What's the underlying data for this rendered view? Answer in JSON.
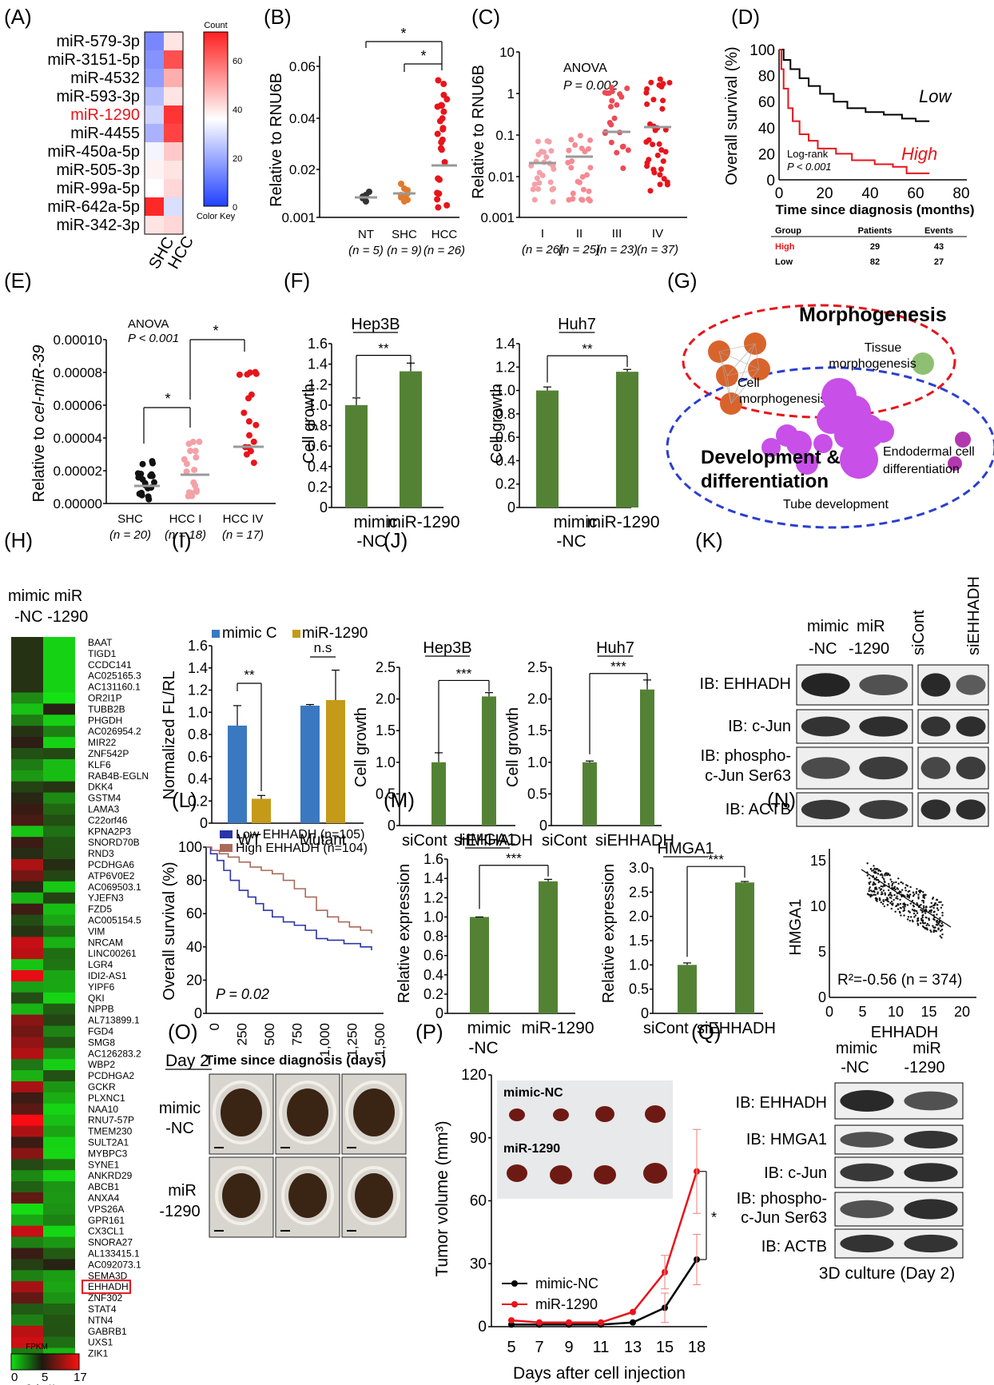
{
  "colors": {
    "red": "#e8141b",
    "green": "#548235",
    "blue": "#3a78c1",
    "gold": "#c59a18",
    "orange": "#e07a2e",
    "grey": "#999999",
    "pink": "#f4a1a8",
    "dark": "#111111"
  },
  "panel_labels": [
    "(A)",
    "(B)",
    "(C)",
    "(D)",
    "(E)",
    "(F)",
    "(G)",
    "(H)",
    "(I)",
    "(J)",
    "(K)",
    "(L)",
    "(M)",
    "(N)",
    "(O)",
    "(P)",
    "(Q)"
  ],
  "A": {
    "mirnas": [
      "miR-579-3p",
      "miR-3151-5p",
      "miR-4532",
      "miR-593-3p",
      "miR-1290",
      "miR-4455",
      "miR-450a-5p",
      "miR-505-3p",
      "miR-99a-5p",
      "miR-642a-5p",
      "miR-342-3p"
    ],
    "highlight": "miR-1290",
    "columns": [
      "SHC",
      "HCC"
    ],
    "counts": [
      [
        10,
        36
      ],
      [
        12,
        58
      ],
      [
        14,
        44
      ],
      [
        20,
        36
      ],
      [
        24,
        62
      ],
      [
        18,
        60
      ],
      [
        30,
        40
      ],
      [
        34,
        36
      ],
      [
        32,
        38
      ],
      [
        64,
        26
      ],
      [
        36,
        38
      ]
    ],
    "key_title": "Count",
    "key_ticks": [
      "60",
      "40",
      "20",
      "0"
    ],
    "key_label": "Color Key"
  },
  "B": {
    "ylabel": "Relative to RNU6B",
    "yticks": [
      "0.06",
      "0.04",
      "0.02",
      "0.001"
    ],
    "groups": [
      {
        "name": "NT",
        "n": "(n = 5)"
      },
      {
        "name": "SHC",
        "n": "(n = 9)"
      },
      {
        "name": "HCC",
        "n": "(n = 26)"
      }
    ],
    "star": "*"
  },
  "C": {
    "ylabel": "Relative to RNU6B",
    "yticks": [
      "10",
      "1",
      "0.1",
      "0.01",
      "0.001"
    ],
    "anova": "ANOVA",
    "p": "P = 0.002",
    "groups": [
      {
        "name": "I",
        "n": "(n = 26)"
      },
      {
        "name": "II",
        "n": "(n = 25)"
      },
      {
        "name": "III",
        "n": "(n = 23)"
      },
      {
        "name": "IV",
        "n": "(n = 37)"
      }
    ]
  },
  "D": {
    "ylabel": "Overall survival (%)",
    "xlabel": "Time since diagnosis (months)",
    "yticks": [
      "100",
      "80",
      "60",
      "40",
      "20",
      "0"
    ],
    "xticks": [
      "0",
      "20",
      "40",
      "60",
      "80"
    ],
    "low": "Low",
    "high": "High",
    "logrank": "Log-rank",
    "p": "P < 0.001",
    "table_header": [
      "Group",
      "Patients",
      "Events"
    ],
    "table_rows": [
      [
        "High",
        "29",
        "43"
      ],
      [
        "Low",
        "82",
        "27"
      ]
    ]
  },
  "E": {
    "ylabel_pre": "Relative to ",
    "ylabel_it": "cel-miR-39",
    "yticks": [
      "0.00010",
      "0.00008",
      "0.00006",
      "0.00004",
      "0.00002",
      "0.00000"
    ],
    "anova": "ANOVA",
    "p": "P < 0.001",
    "groups": [
      {
        "name": "SHC",
        "n": "(n = 20)"
      },
      {
        "name": "HCC I",
        "n": "(n = 18)"
      },
      {
        "name": "HCC IV",
        "n": "(n = 17)"
      }
    ]
  },
  "F": {
    "ylabel": "Cell growth",
    "left": {
      "title": "Hep3B",
      "yticks": [
        "1.6",
        "1.4",
        "1.2",
        "1.0",
        "0.8",
        "0.6",
        "0.4",
        "0.2",
        "0"
      ],
      "values": [
        1.0,
        1.33
      ],
      "sig": "**"
    },
    "right": {
      "title": "Huh7",
      "yticks": [
        "1.4",
        "1.2",
        "1.0",
        "0.8",
        "0.6",
        "0.4",
        "0.2",
        "0"
      ],
      "values": [
        1.0,
        1.16
      ],
      "sig": "**"
    },
    "xlabels": [
      "mimic",
      "-NC",
      "miR-1290"
    ]
  },
  "G": {
    "morphogenesis": "Morphogenesis",
    "tissue": "Tissue",
    "tissue2": "morphogenesis",
    "cell": "Cell",
    "cell2": "morphogenesis",
    "development": "Development &",
    "development2": "differentiation",
    "endodermal": "Endodermal cell",
    "endodermal2": "differentiation",
    "tube": "Tube development"
  },
  "H": {
    "header1": "mimic miR",
    "header2": "-NC -1290",
    "genes": [
      "BAAT",
      "TIGD1",
      "CCDC141",
      "AC025165.3",
      "AC131160.1",
      "OR2I1P",
      "TUBB2B",
      "PHGDH",
      "AC026954.2",
      "MIR22",
      "ZNF542P",
      "KLF6",
      "RAB4B-EGLN",
      "DKK4",
      "GSTM4",
      "LAMA3",
      "C22orf46",
      "KPNA2P3",
      "SNORD70B",
      "RND3",
      "PCDHGA6",
      "ATP6V0E2",
      "AC069503.1",
      "YJEFN3",
      "FZD5",
      "AC005154.5",
      "VIM",
      "NRCAM",
      "LINC00261",
      "LGR4",
      "IDI2-AS1",
      "YIPF6",
      "QKI",
      "NPPB",
      "AL713899.1",
      "FGD4",
      "SMG8",
      "AC126283.2",
      "WBP2",
      "PCDHGA2",
      "GCKR",
      "PLXNC1",
      "NAA10",
      "RNU7-57P",
      "TMEM230",
      "SULT2A1",
      "MYBPC3",
      "SYNE1",
      "ANKRD29",
      "ABCB1",
      "ANXA4",
      "VPS26A",
      "GPR161",
      "CX3CL1",
      "SNORA27",
      "AL133415.1",
      "AC092073.1",
      "SEMA3D",
      "EHHADH",
      "ZNF302",
      "STAT4",
      "NTN4",
      "GABRB1",
      "UXS1",
      "ZIK1"
    ],
    "highlight": "EHHADH",
    "key_title": "FPKM",
    "key_ticks": [
      "0",
      "5",
      "17"
    ],
    "key_label": "Color Key"
  },
  "I": {
    "legend": [
      "mimic C",
      "miR-1290"
    ],
    "ylabel": "Normalized FL/RL",
    "yticks": [
      "1.6",
      "1.4",
      "1.2",
      "1.0",
      "0.8",
      "0.6",
      "0.4",
      "0.2",
      "0"
    ],
    "categories": [
      "WT",
      "Mutant"
    ],
    "series": [
      {
        "name": "mimic C",
        "values": [
          0.88,
          1.06
        ]
      },
      {
        "name": "miR-1290",
        "values": [
          0.22,
          1.11
        ]
      }
    ],
    "sig": [
      "**",
      "n.s"
    ]
  },
  "J": {
    "ylabel": "Overall survival (%)",
    "xlabel": "Time since diagnosis (days)",
    "yticks": [
      "100",
      "80",
      "60",
      "40",
      "20",
      "0"
    ],
    "xticks": [
      "0",
      "250",
      "500",
      "750",
      "1,000",
      "1,250",
      "1,500"
    ],
    "legend_low": "Low EHHADH (n=105)",
    "legend_high": "High EHHADH (n=104)",
    "p": "P = 0.02"
  },
  "K": {
    "ylabel": "Cell growth",
    "left": {
      "title": "Hep3B",
      "yticks": [
        "2.5",
        "2.0",
        "1.5",
        "1.0",
        "0.5",
        "0"
      ],
      "values": [
        1.0,
        2.04
      ],
      "sig": "***"
    },
    "right": {
      "title": "Huh7",
      "yticks": [
        "2.5",
        "2.0",
        "1.5",
        "1.0",
        "0.5",
        "0"
      ],
      "values": [
        1.0,
        2.15
      ],
      "sig": "***"
    },
    "xlabels": [
      "siCont",
      "siEHHADH"
    ]
  },
  "L": {
    "cols": [
      "mimic",
      "-NC",
      "miR",
      "-1290",
      "siCont",
      "siEHHADH"
    ],
    "rows": [
      "IB: EHHADH",
      "IB: c-Jun",
      "IB: phospho-",
      "c-Jun Ser63",
      "IB: ACTB"
    ]
  },
  "M": {
    "ylabel": "Relative expression",
    "left": {
      "title": "HMGA1",
      "yticks": [
        "1.6",
        "1.4",
        "1.2",
        "1.0",
        "0.8",
        "0.6",
        "0.4",
        "0.2",
        "0"
      ],
      "values": [
        1.0,
        1.37
      ],
      "sig": "***",
      "xlabels": [
        "mimic",
        "-NC",
        "miR-1290"
      ]
    },
    "right": {
      "title": "HMGA1",
      "yticks": [
        "3.0",
        "2.5",
        "2.0",
        "1.5",
        "1.0",
        "0.5",
        "0"
      ],
      "values": [
        1.0,
        2.7
      ],
      "sig": "***",
      "xlabels": [
        "siCont",
        "siEHHADH"
      ]
    }
  },
  "N": {
    "ylabel": "HMGA1",
    "xlabel": "EHHADH",
    "yticks": [
      "15",
      "10",
      "5",
      "0"
    ],
    "xticks": [
      "0",
      "5",
      "10",
      "15",
      "20"
    ],
    "annot": "R²=-0.56 (n = 374)"
  },
  "O": {
    "day": "Day 2",
    "rows": [
      "mimic",
      "-NC",
      "miR",
      "-1290"
    ]
  },
  "P": {
    "ylabel": "Tumor volume (mm³)",
    "xlabel": "Days after cell injection",
    "yticks": [
      "120",
      "90",
      "60",
      "30",
      "0"
    ],
    "xticks": [
      "5",
      "7",
      "9",
      "11",
      "13",
      "15",
      "18"
    ],
    "inset_top": "mimic-NC",
    "inset_bottom": "miR-1290",
    "legend": [
      "mimic-NC",
      "miR-1290"
    ],
    "star": "*"
  },
  "Q": {
    "cols": [
      "mimic",
      "-NC",
      "miR",
      "-1290"
    ],
    "rows": [
      "IB: EHHADH",
      "IB: HMGA1",
      "IB: c-Jun",
      "IB: phospho-",
      "c-Jun Ser63",
      "IB: ACTB"
    ],
    "caption": "3D culture (Day 2)"
  },
  "chart_data": [
    {
      "type": "heatmap",
      "title": "",
      "rows": [
        "miR-579-3p",
        "miR-3151-5p",
        "miR-4532",
        "miR-593-3p",
        "miR-1290",
        "miR-4455",
        "miR-450a-5p",
        "miR-505-3p",
        "miR-99a-5p",
        "miR-642a-5p",
        "miR-342-3p"
      ],
      "columns": [
        "SHC",
        "HCC"
      ],
      "values": [
        [
          10,
          36
        ],
        [
          12,
          58
        ],
        [
          14,
          44
        ],
        [
          20,
          36
        ],
        [
          24,
          62
        ],
        [
          18,
          60
        ],
        [
          30,
          40
        ],
        [
          34,
          36
        ],
        [
          32,
          38
        ],
        [
          64,
          26
        ],
        [
          36,
          38
        ]
      ]
    },
    {
      "type": "bar",
      "title": "Hep3B",
      "categories": [
        "mimic-NC",
        "miR-1290"
      ],
      "values": [
        1.0,
        1.33
      ],
      "ylabel": "Cell growth",
      "ylim": [
        0,
        1.6
      ]
    },
    {
      "type": "bar",
      "title": "Huh7",
      "categories": [
        "mimic-NC",
        "miR-1290"
      ],
      "values": [
        1.0,
        1.16
      ],
      "ylabel": "Cell growth",
      "ylim": [
        0,
        1.4
      ]
    },
    {
      "type": "bar",
      "title": "",
      "categories": [
        "WT",
        "Mutant"
      ],
      "series": [
        {
          "name": "mimic C",
          "values": [
            0.88,
            1.06
          ]
        },
        {
          "name": "miR-1290",
          "values": [
            0.22,
            1.11
          ]
        }
      ],
      "ylabel": "Normalized FL/RL",
      "ylim": [
        0,
        1.6
      ]
    },
    {
      "type": "bar",
      "title": "Hep3B",
      "categories": [
        "siCont",
        "siEHHADH"
      ],
      "values": [
        1.0,
        2.04
      ],
      "ylabel": "Cell growth",
      "ylim": [
        0,
        2.5
      ]
    },
    {
      "type": "bar",
      "title": "Huh7",
      "categories": [
        "siCont",
        "siEHHADH"
      ],
      "values": [
        1.0,
        2.15
      ],
      "ylabel": "Cell growth",
      "ylim": [
        0,
        2.5
      ]
    },
    {
      "type": "bar",
      "title": "HMGA1",
      "categories": [
        "mimic-NC",
        "miR-1290"
      ],
      "values": [
        1.0,
        1.37
      ],
      "ylabel": "Relative expression",
      "ylim": [
        0,
        1.6
      ]
    },
    {
      "type": "bar",
      "title": "HMGA1",
      "categories": [
        "siCont",
        "siEHHADH"
      ],
      "values": [
        1.0,
        2.7
      ],
      "ylabel": "Relative expression",
      "ylim": [
        0,
        3.0
      ]
    },
    {
      "type": "line",
      "title": "",
      "x": [
        5,
        7,
        9,
        11,
        13,
        15,
        18
      ],
      "series": [
        {
          "name": "mimic-NC",
          "values": [
            1,
            1,
            1,
            1,
            2,
            9,
            32
          ]
        },
        {
          "name": "miR-1290",
          "values": [
            3,
            2,
            2,
            2,
            7,
            26,
            74
          ]
        }
      ],
      "xlabel": "Days after cell injection",
      "ylabel": "Tumor volume (mm³)",
      "ylim": [
        0,
        120
      ]
    }
  ]
}
